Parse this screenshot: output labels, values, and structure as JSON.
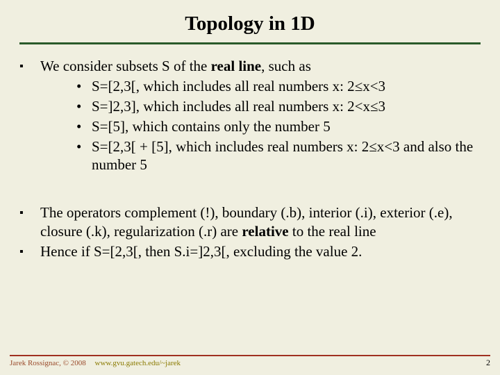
{
  "colors": {
    "background": "#f0efe0",
    "title_rule": "#2a5a2a",
    "footer_rule": "#a03020",
    "footer_text": "#9a4a2a",
    "footer_link": "#8a7a00",
    "text": "#000000"
  },
  "typography": {
    "title_fontsize": 29,
    "body_fontsize": 21,
    "footer_fontsize": 11,
    "font_family": "Times New Roman"
  },
  "title": "Topology in 1D",
  "bullets": {
    "b1_pre": "We consider subsets S of the ",
    "b1_bold": "real line",
    "b1_post": ", such as",
    "b1a": "S=[2,3[, which includes all real numbers x: 2≤x<3",
    "b1b": "S=]2,3], which includes all real numbers x: 2<x≤3",
    "b1c": "S=[5], which contains only the number 5",
    "b1d": "S=[2,3[ + [5], which includes real numbers x: 2≤x<3 and also the number 5",
    "b2_pre": "The operators complement (!), boundary (.b), interior (.i), exterior (.e), closure (.k), regularization (.r) are ",
    "b2_bold": "relative",
    "b2_post": " to the real line",
    "b3": "Hence if S=[2,3[, then S.i=]2,3[, excluding the value 2."
  },
  "footer": {
    "author": "Jarek Rossignac, © 2008",
    "url": "www.gvu.gatech.edu/~jarek",
    "page": "2"
  }
}
